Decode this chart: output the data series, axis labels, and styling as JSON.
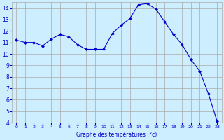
{
  "x": [
    0,
    1,
    2,
    3,
    4,
    5,
    6,
    7,
    8,
    9,
    10,
    11,
    12,
    13,
    14,
    15,
    16,
    17,
    18,
    19,
    20,
    21,
    22,
    23
  ],
  "y": [
    11.2,
    11.0,
    11.0,
    10.7,
    11.3,
    11.7,
    11.5,
    10.8,
    10.4,
    10.4,
    10.4,
    11.8,
    12.5,
    13.1,
    14.3,
    14.4,
    13.9,
    12.8,
    11.7,
    10.8,
    9.5,
    8.5,
    6.5,
    4.1
  ],
  "line_color": "#0000cc",
  "marker": "D",
  "marker_size": 2,
  "background_color": "#cceeff",
  "grid_color": "#aaaaaa",
  "xlabel": "Graphe des températures (°c)",
  "ylim": [
    4,
    14.5
  ],
  "xlim": [
    -0.5,
    23.5
  ],
  "yticks": [
    4,
    5,
    6,
    7,
    8,
    9,
    10,
    11,
    12,
    13,
    14
  ],
  "xticks": [
    0,
    1,
    2,
    3,
    4,
    5,
    6,
    7,
    8,
    9,
    10,
    11,
    12,
    13,
    14,
    15,
    16,
    17,
    18,
    19,
    20,
    21,
    22,
    23
  ]
}
